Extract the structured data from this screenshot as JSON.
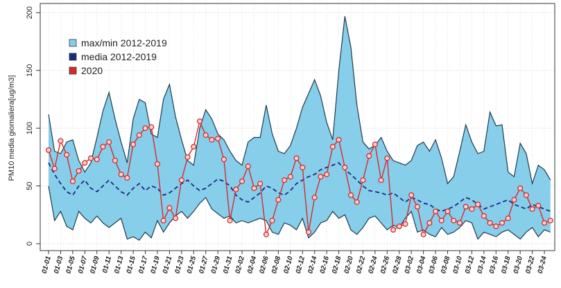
{
  "chart_data": {
    "type": "band-line",
    "y_label": "PM10  media giornaliera[ug/m3]",
    "categories": [
      "01-01",
      null,
      "01-03",
      null,
      "01-05",
      null,
      "01-07",
      null,
      "01-09",
      null,
      "01-11",
      null,
      "01-13",
      null,
      "01-15",
      null,
      "01-17",
      null,
      "01-19",
      null,
      "01-21",
      null,
      "01-23",
      null,
      "01-25",
      null,
      "01-27",
      null,
      "01-29",
      null,
      "01-31",
      null,
      "02-02",
      null,
      "02-04",
      null,
      "02-06",
      null,
      "02-08",
      null,
      "02-10",
      null,
      "02-12",
      null,
      "02-14",
      null,
      "02-16",
      null,
      "02-18",
      null,
      "02-20",
      null,
      "02-22",
      null,
      "02-24",
      null,
      "02-26",
      null,
      "02-28",
      null,
      "03-02",
      null,
      "03-04",
      null,
      "03-06",
      null,
      "03-08",
      null,
      "03-10",
      null,
      "03-12",
      null,
      "03-14",
      null,
      "03-16",
      null,
      "03-18",
      null,
      "03-20",
      null,
      "03-22",
      null,
      "03-24",
      null
    ],
    "series": [
      {
        "name": "max/min 2012-2019",
        "kind": "band",
        "color": "#87ceeb",
        "edge": "#1f3a4a",
        "values": [
          112,
          80,
          78,
          88,
          90,
          72,
          62,
          70,
          92,
          115,
          131,
          108,
          88,
          70,
          108,
          125,
          122,
          95,
          92,
          125,
          138,
          110,
          90,
          72,
          68,
          100,
          116,
          108,
          95,
          90,
          80,
          72,
          68,
          88,
          92,
          92,
          120,
          95,
          80,
          78,
          85,
          100,
          118,
          130,
          142,
          128,
          105,
          90,
          150,
          197,
          170,
          120,
          88,
          82,
          85,
          92,
          80,
          72,
          70,
          68,
          72,
          85,
          88,
          80,
          90,
          74,
          52,
          58,
          80,
          103,
          88,
          78,
          80,
          114,
          102,
          103,
          62,
          58,
          87,
          78,
          52,
          68,
          64,
          55
        ],
        "lower": [
          50,
          20,
          28,
          15,
          12,
          28,
          22,
          18,
          24,
          18,
          14,
          18,
          22,
          4,
          6,
          3,
          10,
          5,
          20,
          10,
          18,
          24,
          28,
          22,
          28,
          35,
          40,
          30,
          26,
          22,
          24,
          18,
          20,
          18,
          20,
          22,
          20,
          10,
          8,
          18,
          16,
          12,
          22,
          5,
          10,
          18,
          20,
          28,
          22,
          25,
          12,
          8,
          14,
          22,
          24,
          18,
          12,
          16,
          14,
          22,
          28,
          10,
          12,
          8,
          6,
          14,
          8,
          10,
          14,
          20,
          18,
          4,
          10,
          8,
          6,
          10,
          12,
          8,
          4,
          10,
          14,
          6,
          12,
          10
        ]
      },
      {
        "name": "media 2012-2019",
        "kind": "dashed",
        "color": "#1a2a80",
        "values": [
          70,
          60,
          52,
          45,
          42,
          50,
          55,
          48,
          45,
          50,
          55,
          50,
          45,
          42,
          48,
          52,
          46,
          50,
          48,
          42,
          44,
          48,
          52,
          55,
          50,
          46,
          48,
          52,
          56,
          54,
          50,
          42,
          38,
          36,
          40,
          44,
          50,
          48,
          44,
          42,
          46,
          52,
          55,
          58,
          60,
          64,
          66,
          68,
          70,
          64,
          60,
          55,
          50,
          46,
          45,
          44,
          42,
          44,
          40,
          36,
          40,
          38,
          35,
          34,
          30,
          28,
          30,
          32,
          36,
          40,
          38,
          34,
          30,
          32,
          34,
          36,
          38,
          34,
          32,
          30,
          34,
          32,
          30,
          28
        ]
      },
      {
        "name": "2020",
        "kind": "points",
        "color": "#d42a2a",
        "values": [
          81,
          65,
          89,
          77,
          54,
          63,
          70,
          74,
          73,
          84,
          88,
          72,
          60,
          57,
          86,
          94,
          100,
          101,
          69,
          20,
          31,
          22,
          55,
          75,
          84,
          106,
          94,
          90,
          91,
          73,
          20,
          47,
          54,
          67,
          48,
          52,
          8,
          20,
          38,
          55,
          58,
          74,
          66,
          10,
          40,
          58,
          60,
          84,
          90,
          66,
          42,
          36,
          55,
          76,
          86,
          55,
          74,
          12,
          15,
          17,
          42,
          32,
          8,
          18,
          28,
          20,
          28,
          20,
          18,
          32,
          30,
          34,
          24,
          18,
          15,
          18,
          22,
          38,
          48,
          42,
          30,
          33,
          18,
          20
        ]
      }
    ],
    "ylim": [
      -6,
      208
    ],
    "yticks": [
      0,
      50,
      100,
      150,
      200
    ],
    "grid": true,
    "legend": "top-left"
  }
}
